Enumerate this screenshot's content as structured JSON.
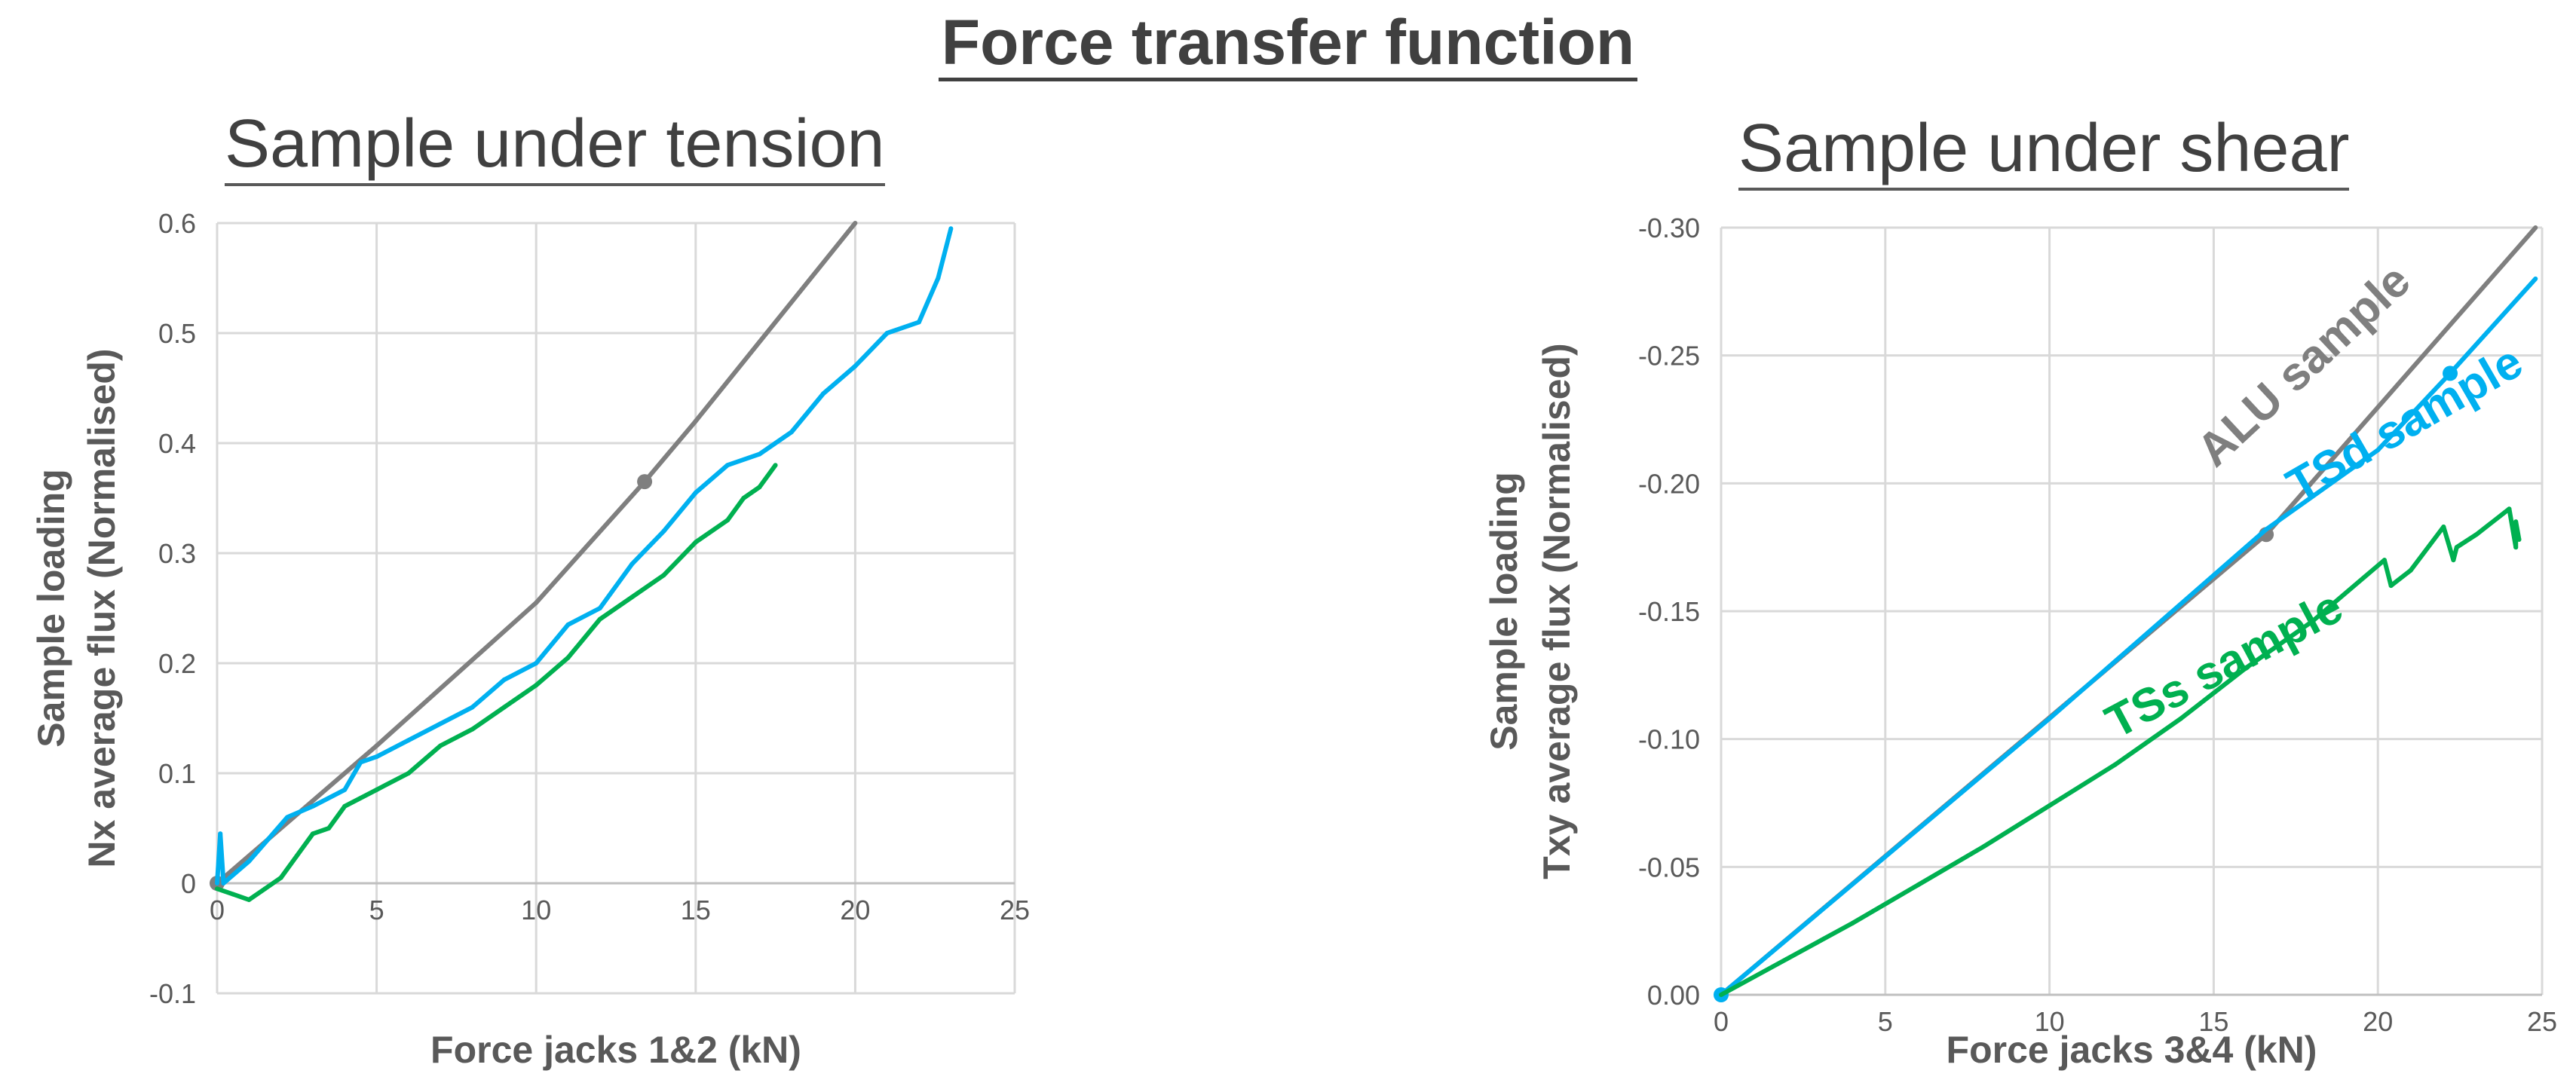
{
  "title": "Force transfer function",
  "chart_data": [
    {
      "type": "line",
      "title": "Sample under tension",
      "xlabel": "Force jacks 1&2 (kN)",
      "ylabel": [
        "Sample loading",
        "Nx average flux (Normalised)"
      ],
      "xlim": [
        0,
        25
      ],
      "ylim": [
        -0.1,
        0.6
      ],
      "xticks": [
        0,
        5,
        10,
        15,
        20,
        25
      ],
      "yticks": [
        -0.1,
        0,
        0.1,
        0.2,
        0.3,
        0.4,
        0.5,
        0.6
      ],
      "ytick_labels": [
        "-0.1",
        "0",
        "0.1",
        "0.2",
        "0.3",
        "0.4",
        "0.5",
        "0.6"
      ],
      "grid": true,
      "series": [
        {
          "color": "#7f7f7f",
          "x": [
            0,
            5,
            10,
            13.4,
            15,
            20
          ],
          "y": [
            0,
            0.125,
            0.255,
            0.365,
            0.42,
            0.6
          ],
          "markers": [
            [
              0,
              0
            ],
            [
              13.4,
              0.365
            ]
          ]
        },
        {
          "color": "#00b0f0",
          "x": [
            0,
            0.1,
            0.2,
            0.6,
            1.0,
            1.6,
            2.2,
            3.0,
            4.0,
            4.5,
            5.0,
            6.0,
            7.0,
            8.0,
            9.0,
            10.0,
            11.0,
            12.0,
            13.0,
            14.0,
            15.0,
            16.0,
            17.0,
            18.0,
            19.0,
            20.0,
            21.0,
            22.0,
            22.6,
            23.0
          ],
          "y": [
            0,
            0.045,
            0.0,
            0.01,
            0.02,
            0.04,
            0.06,
            0.07,
            0.085,
            0.11,
            0.115,
            0.13,
            0.145,
            0.16,
            0.185,
            0.2,
            0.235,
            0.25,
            0.29,
            0.32,
            0.355,
            0.38,
            0.39,
            0.41,
            0.445,
            0.47,
            0.5,
            0.51,
            0.55,
            0.595
          ]
        },
        {
          "color": "#00b050",
          "x": [
            0,
            0.5,
            1.0,
            1.5,
            2.0,
            2.5,
            3.0,
            3.5,
            4.0,
            5.0,
            6.0,
            7.0,
            8.0,
            9.0,
            10.0,
            11.0,
            12.0,
            13.0,
            14.0,
            15.0,
            16.0,
            16.5,
            17.0,
            17.5
          ],
          "y": [
            -0.005,
            -0.01,
            -0.015,
            -0.005,
            0.005,
            0.025,
            0.045,
            0.05,
            0.07,
            0.085,
            0.1,
            0.125,
            0.14,
            0.16,
            0.18,
            0.205,
            0.24,
            0.26,
            0.28,
            0.31,
            0.33,
            0.35,
            0.36,
            0.38
          ]
        }
      ]
    },
    {
      "type": "line",
      "title": "Sample under shear",
      "xlabel": "Force jacks 3&4 (kN)",
      "ylabel": [
        "Sample loading",
        "Txy average flux (Normalised)"
      ],
      "xlim": [
        0,
        25
      ],
      "ylim": [
        0,
        -0.3
      ],
      "xticks": [
        0,
        5,
        10,
        15,
        20,
        25
      ],
      "yticks": [
        0,
        -0.05,
        -0.1,
        -0.15,
        -0.2,
        -0.25,
        -0.3
      ],
      "ytick_labels": [
        "0.00",
        "-0.05",
        "-0.10",
        "-0.15",
        "-0.20",
        "-0.25",
        "-0.30"
      ],
      "grid": true,
      "series": [
        {
          "name": "ALU sample",
          "color": "#7f7f7f",
          "x": [
            0,
            16.6,
            24.8
          ],
          "y": [
            0,
            -0.18,
            -0.3
          ],
          "markers": [
            [
              16.6,
              -0.18
            ]
          ]
        },
        {
          "name": "TSd sample",
          "color": "#00b0f0",
          "x": [
            0,
            10,
            16.6,
            20,
            22.2,
            24.8
          ],
          "y": [
            0,
            -0.108,
            -0.182,
            -0.213,
            -0.243,
            -0.28
          ],
          "markers": [
            [
              0,
              0
            ],
            [
              22.2,
              -0.243
            ]
          ]
        },
        {
          "name": "TSs sample",
          "color": "#00b050",
          "x": [
            0,
            2,
            4,
            6,
            8,
            10,
            12,
            14,
            16,
            18,
            20.2,
            20.4,
            21,
            22,
            22.3,
            22.4,
            23,
            24,
            24.2,
            24.2,
            24.3
          ],
          "y": [
            0,
            -0.014,
            -0.028,
            -0.043,
            -0.058,
            -0.074,
            -0.09,
            -0.108,
            -0.128,
            -0.146,
            -0.17,
            -0.16,
            -0.166,
            -0.183,
            -0.17,
            -0.175,
            -0.18,
            -0.19,
            -0.175,
            -0.185,
            -0.178
          ]
        }
      ]
    }
  ]
}
